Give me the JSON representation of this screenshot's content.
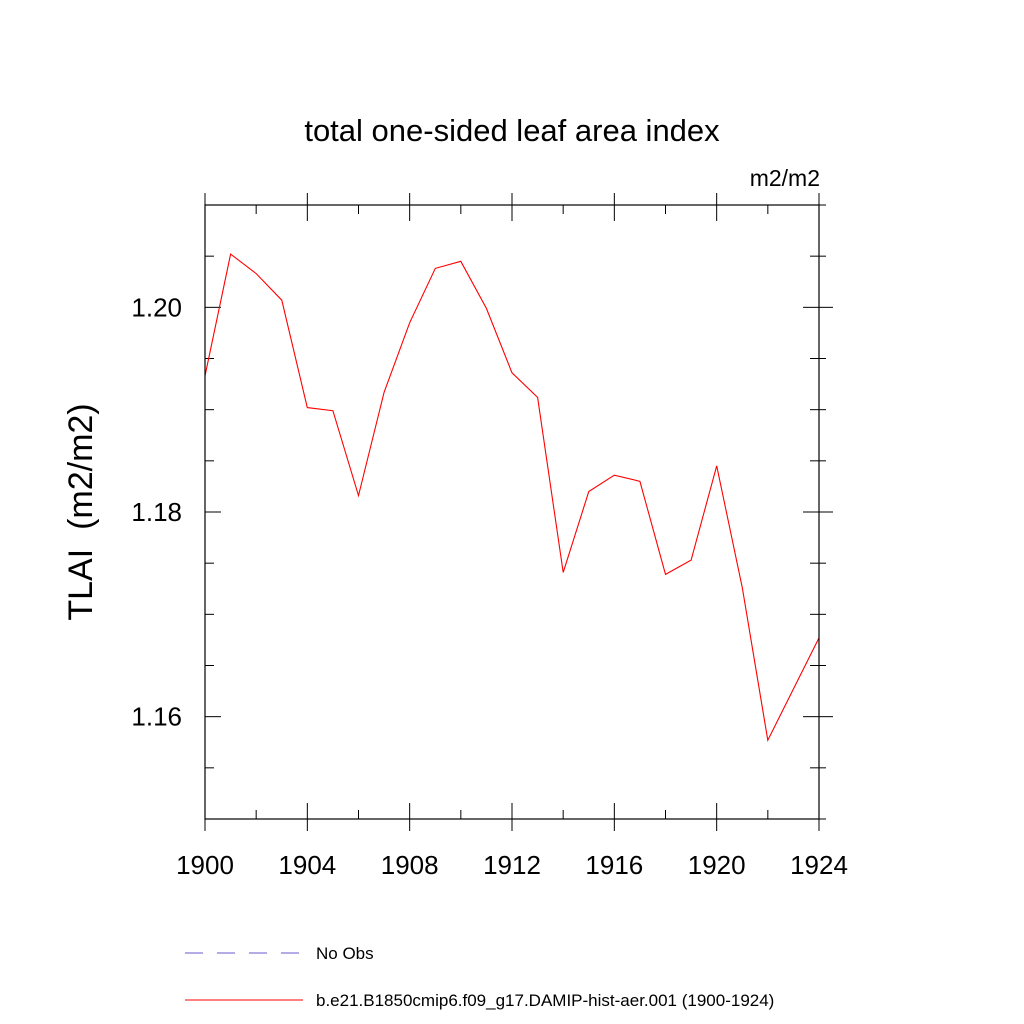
{
  "chart_data": {
    "type": "line",
    "title": "total one-sided leaf area index",
    "units_label": "m2/m2",
    "ylabel": "TLAI  (m2/m2)",
    "xlabel": "",
    "xlim": [
      1900,
      1924
    ],
    "ylim": [
      1.15,
      1.21
    ],
    "x_ticks": [
      1900,
      1904,
      1908,
      1912,
      1916,
      1920,
      1924
    ],
    "x_tick_labels": [
      "1900",
      "1904",
      "1908",
      "1912",
      "1916",
      "1920",
      "1924"
    ],
    "y_ticks": [
      1.16,
      1.18,
      1.2
    ],
    "y_tick_labels": [
      "1.16",
      "1.18",
      "1.20"
    ],
    "grid": false,
    "series": [
      {
        "name": "b.e21.B1850cmip6.f09_g17.DAMIP-hist-aer.001 (1900-1924)",
        "color": "#ff0000",
        "x": [
          1900,
          1901,
          1902,
          1903,
          1904,
          1905,
          1906,
          1907,
          1908,
          1909,
          1910,
          1911,
          1912,
          1913,
          1914,
          1915,
          1916,
          1917,
          1918,
          1919,
          1920,
          1921,
          1922,
          1923,
          1924
        ],
        "values": [
          1.1933,
          1.2052,
          1.2033,
          1.2007,
          1.1902,
          1.1899,
          1.1816,
          1.1917,
          1.1985,
          1.2038,
          1.2045,
          1.1999,
          1.1936,
          1.1912,
          1.1741,
          1.182,
          1.1836,
          1.183,
          1.1739,
          1.1753,
          1.1845,
          1.1726,
          1.1577,
          1.1627,
          1.1677
        ]
      }
    ],
    "legend": {
      "placement": "bottom",
      "entries": [
        {
          "label": "No Obs",
          "color": "#6a5acd",
          "style": "dashed"
        },
        {
          "label": "b.e21.B1850cmip6.f09_g17.DAMIP-hist-aer.001 (1900-1924)",
          "color": "#ff0000",
          "style": "solid"
        }
      ]
    }
  }
}
